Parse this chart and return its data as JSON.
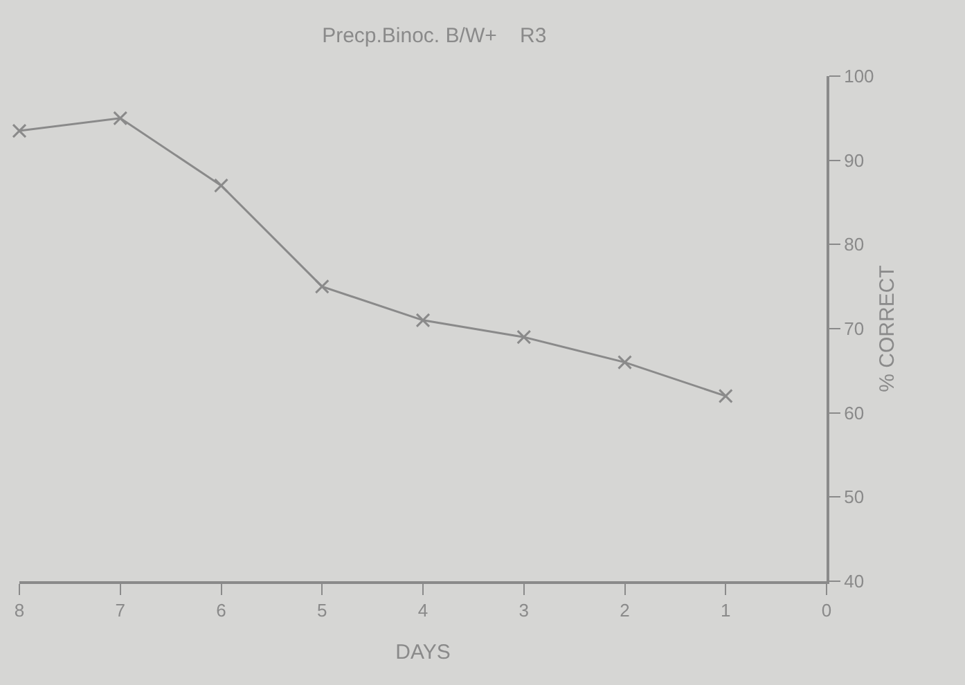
{
  "chart_data": {
    "type": "line",
    "title": "Precp.Binoc. B/W+    R3",
    "xlabel": "DAYS",
    "ylabel": "% CORRECT",
    "x": [
      8,
      7,
      6,
      5,
      4,
      3,
      2,
      1
    ],
    "series": [
      {
        "color": "#8a8a8a",
        "values": [
          93.5,
          95,
          87,
          75,
          71,
          69,
          66,
          62
        ]
      }
    ],
    "xlim": [
      8,
      0
    ],
    "xticks": [
      8,
      7,
      6,
      5,
      4,
      3,
      2,
      1,
      0
    ],
    "ylim": [
      40,
      100
    ],
    "yticks": [
      40,
      50,
      60,
      70,
      80,
      90,
      100
    ],
    "marker": "cross",
    "line_style": "solid"
  }
}
